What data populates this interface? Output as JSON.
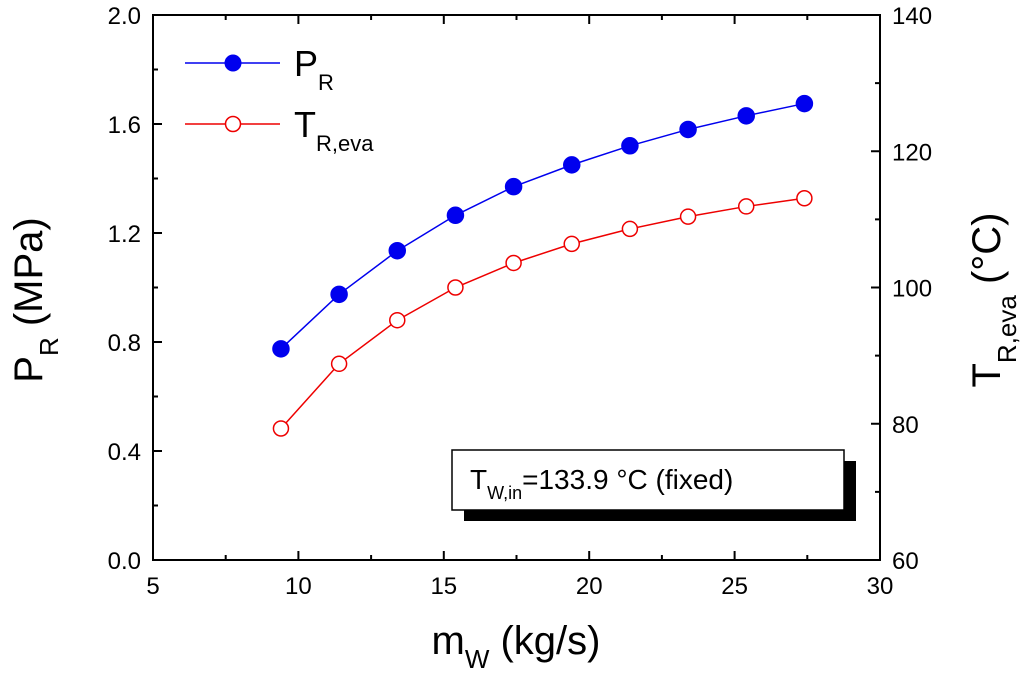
{
  "chart_data": {
    "type": "line",
    "title": "",
    "x": [
      9.4,
      11.4,
      13.4,
      15.4,
      17.4,
      19.4,
      21.4,
      23.4,
      25.4,
      27.4
    ],
    "xlim": [
      5,
      30
    ],
    "xticks": [
      "5",
      "10",
      "15",
      "20",
      "25",
      "30"
    ],
    "xlabel": {
      "main": "m",
      "sub": "W",
      "unit": " (kg/s)"
    },
    "ylim_left": [
      0.0,
      2.0
    ],
    "yticks_left": [
      "0.0",
      "0.4",
      "0.8",
      "1.2",
      "1.6",
      "2.0"
    ],
    "ylabel_left": {
      "main": "P",
      "sub": "R",
      "unit": " (MPa)"
    },
    "ylim_right": [
      60,
      140
    ],
    "yticks_right": [
      "60",
      "80",
      "100",
      "120",
      "140"
    ],
    "ylabel_right": {
      "main": "T",
      "sub": "R,eva",
      "unit": " (°C)"
    },
    "series": [
      {
        "name": "P_R",
        "label_main": "P",
        "label_sub": "R",
        "axis": "left",
        "marker": "filled-circle",
        "color": "#0000ee",
        "values": [
          0.775,
          0.975,
          1.135,
          1.265,
          1.37,
          1.45,
          1.52,
          1.58,
          1.63,
          1.675
        ]
      },
      {
        "name": "T_R,eva",
        "label_main": "T",
        "label_sub": "R,eva",
        "axis": "right",
        "marker": "open-circle",
        "color": "#ee0000",
        "values": [
          79.3,
          88.8,
          95.2,
          100.0,
          103.6,
          106.4,
          108.6,
          110.4,
          111.9,
          113.1
        ]
      }
    ],
    "annotation": {
      "main": "T",
      "sub": "W,in",
      "rest": "=133.9 °C (fixed)"
    },
    "legend_position": "top-left"
  }
}
